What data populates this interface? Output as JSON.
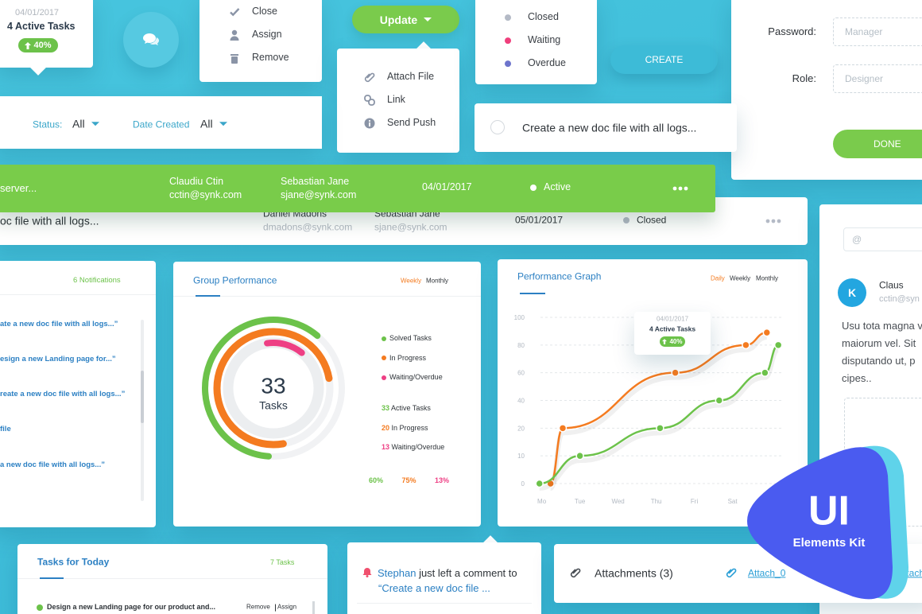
{
  "task_tooltip": {
    "date": "04/01/2017",
    "title": "4 Active Tasks",
    "badge": "40%"
  },
  "action_menu": {
    "items": [
      "Close",
      "Assign",
      "Remove"
    ]
  },
  "update_button": {
    "label": "Update"
  },
  "update_dropdown": {
    "items": [
      "Attach File",
      "Link",
      "Send Push"
    ]
  },
  "status_menu": {
    "items": [
      {
        "label": "Closed",
        "color": "#b4bac6"
      },
      {
        "label": "Waiting",
        "color": "#ef3f7c"
      },
      {
        "label": "Overdue",
        "color": "#6d74cc"
      }
    ]
  },
  "create_button": {
    "label": "CREATE"
  },
  "user_form": {
    "fields": [
      {
        "label": "Password:",
        "placeholder": "Manager"
      },
      {
        "label": "Role:",
        "placeholder": "Designer"
      }
    ],
    "button": "DONE"
  },
  "filters": [
    {
      "label": "Status:",
      "value": "All"
    },
    {
      "label": "Date Created",
      "value": "All"
    }
  ],
  "new_task": {
    "text": "Create a new doc file with all logs..."
  },
  "task_rows": [
    {
      "task": "server...",
      "owner": {
        "name": "Claudiu Ctin",
        "email": "cctin@synk.com"
      },
      "assignee": {
        "name": "Sebastian Jane",
        "email": "sjane@synk.com"
      },
      "date": "04/01/2017",
      "status": "Active"
    },
    {
      "task": "oc file with all logs...",
      "owner": {
        "name": "Daniel Madons",
        "email": "dmadons@synk.com"
      },
      "assignee": {
        "name": "Sebastian Jane",
        "email": "sjane@synk.com"
      },
      "date": "05/01/2017",
      "status": "Closed"
    }
  ],
  "notifications": {
    "count": "6 Notifications",
    "items": [
      "ate a new doc file with all logs...”",
      "esign a new Landing page for...”",
      "reate a new doc file with all logs...”",
      "file",
      "a new doc file with all logs...”"
    ]
  },
  "group_performance": {
    "title": "Group Performance",
    "tabs": [
      "Weekly",
      "Monthly"
    ],
    "center_value": 33,
    "center_label": "Tasks",
    "rings": [
      {
        "name": "Solved Tasks",
        "color": "#6cc24a",
        "value": 60,
        "label": "60%"
      },
      {
        "name": "In Progress",
        "color": "#f47b20",
        "value": 75,
        "label": "75%"
      },
      {
        "name": "Waiting/Overdue",
        "color": "#ee3f84",
        "value": 13,
        "label": "13%"
      }
    ],
    "counts": [
      {
        "value": 33,
        "label": "Active Tasks"
      },
      {
        "value": 20,
        "label": "In Progress"
      },
      {
        "value": 13,
        "label": "Waiting/Overdue"
      }
    ]
  },
  "performance_graph": {
    "type": "line",
    "title": "Performance Graph",
    "tabs": [
      "Daily",
      "Weekly",
      "Monthly"
    ],
    "xlim": [
      -0.2,
      6.3
    ],
    "xticks": [
      {
        "value": 0,
        "label": "Mo"
      },
      {
        "value": 1,
        "label": "Tue"
      },
      {
        "value": 2,
        "label": "Wed"
      },
      {
        "value": 3,
        "label": "Thu"
      },
      {
        "value": 4,
        "label": "Fri"
      },
      {
        "value": 5,
        "label": "Sat"
      }
    ],
    "ylim": [
      0,
      100
    ],
    "yticks": [
      0,
      10,
      20,
      40,
      60,
      80,
      100
    ],
    "grid": true,
    "series": [
      {
        "color": "#f47b20",
        "x": [
          0.23,
          0.55,
          3.5,
          5.35,
          5.9
        ],
        "values": [
          0,
          20,
          60,
          80,
          89
        ]
      },
      {
        "color": "#6cc24a",
        "x": [
          -0.06,
          1,
          3.1,
          4.65,
          5.85,
          6.2
        ],
        "values": [
          0,
          10,
          20,
          40,
          60,
          80
        ]
      }
    ],
    "tooltip": {
      "date": "04/01/2017",
      "title": "4 Active Tasks",
      "badge": "40%"
    }
  },
  "chat": {
    "placeholder": "@",
    "avatar": "K",
    "name": "Claus",
    "email": "cctin@syn",
    "message_lines": [
      "Usu tota magna v",
      "maiorum vel. Sit",
      "disputando ut, p",
      "cipes.."
    ]
  },
  "tasks_today": {
    "title": "Tasks for Today",
    "count": "7 Tasks",
    "items": [
      {
        "text": "Design a new Landing page for our product and...",
        "actions": [
          "Remove",
          "Assign"
        ]
      }
    ]
  },
  "comment": {
    "author": "Stephan",
    "text": "just left a comment to",
    "target": "“Create a new doc file ..."
  },
  "attachments": {
    "title": "Attachments (3)",
    "files": [
      "Attach_0",
      "Attach"
    ]
  },
  "badge": {
    "title": "UI",
    "subtitle": "Elements Kit"
  }
}
